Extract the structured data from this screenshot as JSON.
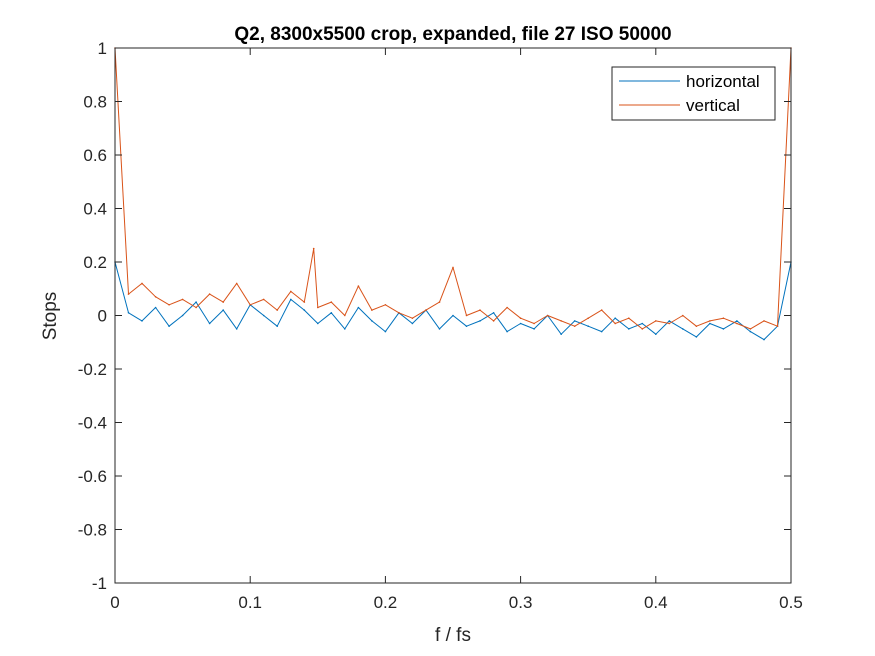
{
  "chart_data": {
    "type": "line",
    "title": "Q2, 8300x5500 crop, expanded, file 27 ISO 50000",
    "xlabel": "f / fs",
    "ylabel": "Stops",
    "xlim": [
      0,
      0.5
    ],
    "ylim": [
      -1,
      1
    ],
    "xticks": [
      0,
      0.1,
      0.2,
      0.3,
      0.4,
      0.5
    ],
    "xtick_labels": [
      "0",
      "0.1",
      "0.2",
      "0.3",
      "0.4",
      "0.5"
    ],
    "yticks": [
      -1,
      -0.8,
      -0.6,
      -0.4,
      -0.2,
      0,
      0.2,
      0.4,
      0.6,
      0.8,
      1
    ],
    "ytick_labels": [
      "-1",
      "-0.8",
      "-0.6",
      "-0.4",
      "-0.2",
      "0",
      "0.2",
      "0.4",
      "0.6",
      "0.8",
      "1"
    ],
    "grid": false,
    "legend_position": "top-right",
    "series": [
      {
        "name": "horizontal",
        "color": "#0072BD",
        "x": [
          0,
          0.01,
          0.02,
          0.03,
          0.04,
          0.05,
          0.06,
          0.07,
          0.08,
          0.09,
          0.1,
          0.11,
          0.12,
          0.13,
          0.14,
          0.15,
          0.16,
          0.17,
          0.18,
          0.19,
          0.2,
          0.21,
          0.22,
          0.23,
          0.24,
          0.25,
          0.26,
          0.27,
          0.28,
          0.29,
          0.3,
          0.31,
          0.32,
          0.33,
          0.34,
          0.35,
          0.36,
          0.37,
          0.38,
          0.39,
          0.4,
          0.41,
          0.42,
          0.43,
          0.44,
          0.45,
          0.46,
          0.47,
          0.48,
          0.49,
          0.5
        ],
        "y": [
          0.2,
          0.01,
          -0.02,
          0.03,
          -0.04,
          0.0,
          0.05,
          -0.03,
          0.02,
          -0.05,
          0.04,
          0.0,
          -0.04,
          0.06,
          0.02,
          -0.03,
          0.01,
          -0.05,
          0.03,
          -0.02,
          -0.06,
          0.01,
          -0.03,
          0.02,
          -0.05,
          0.0,
          -0.04,
          -0.02,
          0.01,
          -0.06,
          -0.03,
          -0.05,
          0.0,
          -0.07,
          -0.02,
          -0.04,
          -0.06,
          -0.01,
          -0.05,
          -0.03,
          -0.07,
          -0.02,
          -0.05,
          -0.08,
          -0.03,
          -0.05,
          -0.02,
          -0.06,
          -0.09,
          -0.04,
          0.2
        ]
      },
      {
        "name": "vertical",
        "color": "#D95319",
        "x": [
          0,
          0.01,
          0.02,
          0.03,
          0.04,
          0.05,
          0.06,
          0.07,
          0.08,
          0.09,
          0.1,
          0.11,
          0.12,
          0.13,
          0.14,
          0.147,
          0.15,
          0.16,
          0.17,
          0.18,
          0.19,
          0.2,
          0.21,
          0.22,
          0.23,
          0.24,
          0.25,
          0.26,
          0.27,
          0.28,
          0.29,
          0.3,
          0.31,
          0.32,
          0.33,
          0.34,
          0.35,
          0.36,
          0.37,
          0.38,
          0.39,
          0.4,
          0.41,
          0.42,
          0.43,
          0.44,
          0.45,
          0.46,
          0.47,
          0.48,
          0.49,
          0.5
        ],
        "y": [
          1.0,
          0.08,
          0.12,
          0.07,
          0.04,
          0.06,
          0.03,
          0.08,
          0.05,
          0.12,
          0.04,
          0.06,
          0.02,
          0.09,
          0.05,
          0.25,
          0.03,
          0.05,
          0.0,
          0.11,
          0.02,
          0.04,
          0.01,
          -0.01,
          0.02,
          0.05,
          0.18,
          0.0,
          0.02,
          -0.02,
          0.03,
          -0.01,
          -0.03,
          0.0,
          -0.02,
          -0.04,
          -0.01,
          0.02,
          -0.03,
          -0.01,
          -0.05,
          -0.02,
          -0.03,
          0.0,
          -0.04,
          -0.02,
          -0.01,
          -0.03,
          -0.05,
          -0.02,
          -0.04,
          1.0
        ]
      }
    ]
  }
}
